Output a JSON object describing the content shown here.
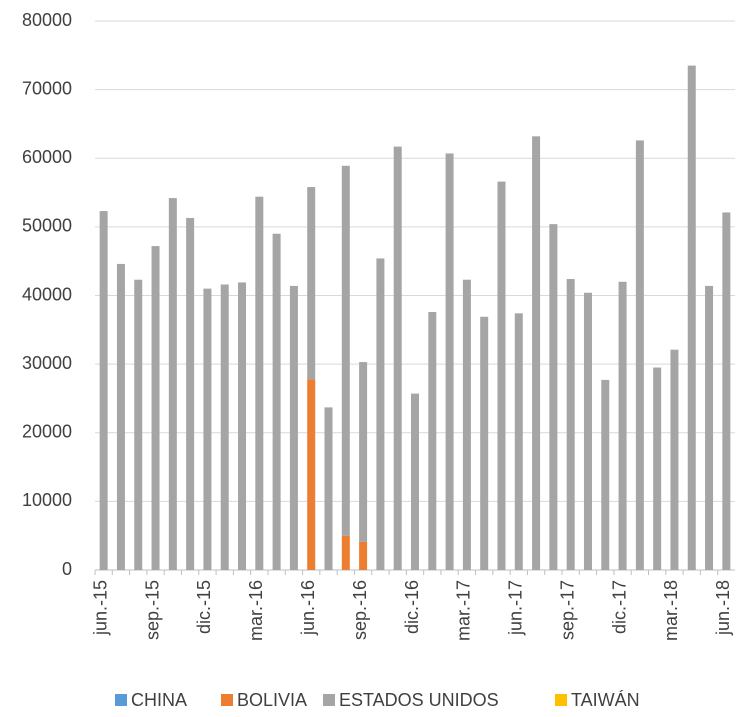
{
  "chart_data": {
    "type": "bar",
    "stacked": true,
    "categories": [
      "jun.-15",
      null,
      null,
      "sep.-15",
      null,
      null,
      "dic.-15",
      null,
      null,
      "mar.-16",
      null,
      null,
      "jun.-16",
      null,
      null,
      "sep.-16",
      null,
      null,
      "dic.-16",
      null,
      null,
      "mar.-17",
      null,
      null,
      "jun.-17",
      null,
      null,
      "sep.-17",
      null,
      null,
      "dic.-17",
      null,
      null,
      "mar.-18",
      null,
      null,
      "jun.-18"
    ],
    "series": [
      {
        "name": "CHINA",
        "color": "#5b9bd5",
        "values": [
          0,
          0,
          0,
          0,
          0,
          0,
          0,
          0,
          0,
          0,
          0,
          0,
          0,
          0,
          0,
          0,
          0,
          0,
          0,
          0,
          0,
          0,
          0,
          0,
          0,
          0,
          0,
          0,
          0,
          0,
          0,
          0,
          0,
          0,
          0,
          0,
          0
        ]
      },
      {
        "name": "BOLIVIA",
        "color": "#ed7d31",
        "values": [
          0,
          0,
          0,
          0,
          0,
          0,
          0,
          0,
          0,
          0,
          0,
          0,
          27800,
          0,
          5000,
          4100,
          0,
          0,
          0,
          0,
          0,
          0,
          0,
          0,
          0,
          0,
          0,
          0,
          0,
          0,
          0,
          0,
          0,
          0,
          0,
          0,
          0
        ]
      },
      {
        "name": "ESTADOS UNIDOS",
        "color": "#a5a5a5",
        "values": [
          52300,
          44600,
          42300,
          47200,
          54200,
          51300,
          41000,
          41600,
          41900,
          54400,
          49000,
          41400,
          28000,
          23700,
          53900,
          26200,
          45400,
          61700,
          25700,
          37600,
          60700,
          42300,
          36900,
          56600,
          37400,
          63200,
          50400,
          42400,
          40400,
          27700,
          42000,
          62600,
          29500,
          32100,
          73500,
          41400,
          52100
        ]
      },
      {
        "name": "TAIWÁN",
        "color": "#ffc000",
        "values": [
          0,
          0,
          0,
          0,
          0,
          0,
          0,
          0,
          0,
          0,
          0,
          0,
          0,
          0,
          0,
          0,
          0,
          0,
          0,
          0,
          0,
          0,
          0,
          0,
          0,
          0,
          0,
          0,
          0,
          0,
          0,
          0,
          0,
          0,
          0,
          0,
          0
        ]
      }
    ],
    "ylim": [
      0,
      80000
    ],
    "yticks": [
      0,
      10000,
      20000,
      30000,
      40000,
      50000,
      60000,
      70000,
      80000
    ],
    "grid": true,
    "legend": "bottom"
  }
}
